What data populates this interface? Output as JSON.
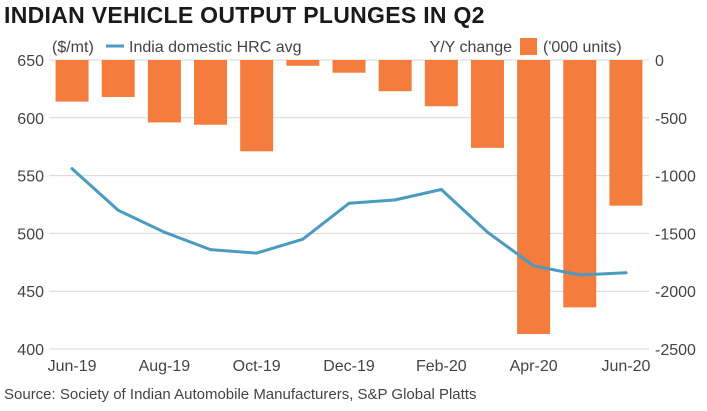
{
  "title": "INDIAN VEHICLE OUTPUT PLUNGES IN Q2",
  "source": "Source: Society of Indian Automobile Manufacturers, S&P Global Platts",
  "colors": {
    "line": "#4a9bbf",
    "bar": "#f47c3c",
    "grid": "#d7d7d7",
    "axis_text": "#444444"
  },
  "chart_data": {
    "type": "bar+line",
    "categories": [
      "Jun-19",
      "Jul-19",
      "Aug-19",
      "Sep-19",
      "Oct-19",
      "Nov-19",
      "Dec-19",
      "Jan-20",
      "Feb-20",
      "Mar-20",
      "Apr-20",
      "May-20",
      "Jun-20"
    ],
    "x_tick_labels": [
      "Jun-19",
      "Aug-19",
      "Oct-19",
      "Dec-19",
      "Feb-20",
      "Apr-20",
      "Jun-20"
    ],
    "series": [
      {
        "name": "India domestic HRC avg",
        "type": "line",
        "axis": "left",
        "values": [
          556,
          520,
          501,
          486,
          483,
          495,
          526,
          529,
          538,
          501,
          472,
          464,
          466
        ]
      },
      {
        "name": "Y/Y change",
        "type": "bar",
        "axis": "right",
        "values": [
          -360,
          -320,
          -540,
          -560,
          -790,
          -50,
          -110,
          -270,
          -400,
          -760,
          -2370,
          -2140,
          -1260
        ]
      }
    ],
    "left_axis": {
      "label": "($/mt)",
      "ylim": [
        400,
        650
      ],
      "ticks": [
        400,
        450,
        500,
        550,
        600,
        650
      ]
    },
    "right_axis": {
      "label": "('000 units)",
      "ylim": [
        -2500,
        0
      ],
      "ticks": [
        0,
        -500,
        -1000,
        -1500,
        -2000,
        -2500
      ]
    },
    "legend": {
      "position": "top",
      "items": [
        "India domestic HRC avg",
        "Y/Y change"
      ]
    },
    "grid": true
  }
}
